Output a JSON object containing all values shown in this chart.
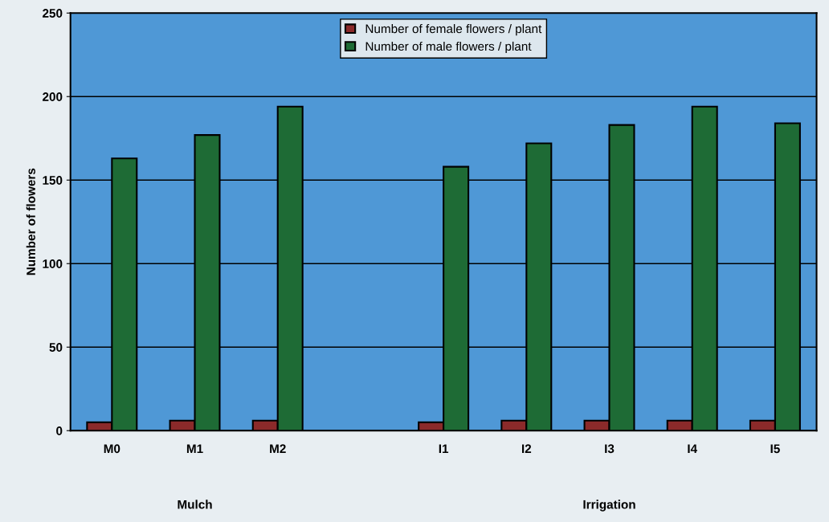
{
  "chart_data": {
    "type": "bar",
    "ylabel": "Number of flowers",
    "categories": [
      "M0",
      "M1",
      "M2",
      null,
      "I1",
      "I2",
      "I3",
      "I4",
      "I5"
    ],
    "series": [
      {
        "name": "Number of female flowers / plant",
        "color": "#8b2a2a",
        "values": [
          5,
          6,
          6,
          null,
          5,
          6,
          6,
          6,
          6
        ]
      },
      {
        "name": "Number of male flowers / plant",
        "color": "#1e6b35",
        "values": [
          163,
          177,
          194,
          null,
          158,
          172,
          183,
          194,
          184
        ]
      }
    ],
    "ylim": [
      0,
      250
    ],
    "yticks": [
      0,
      50,
      100,
      150,
      200,
      250
    ],
    "grid": "y",
    "legend": "top",
    "annotations": [
      "Mulch",
      "Irrigation"
    ]
  }
}
